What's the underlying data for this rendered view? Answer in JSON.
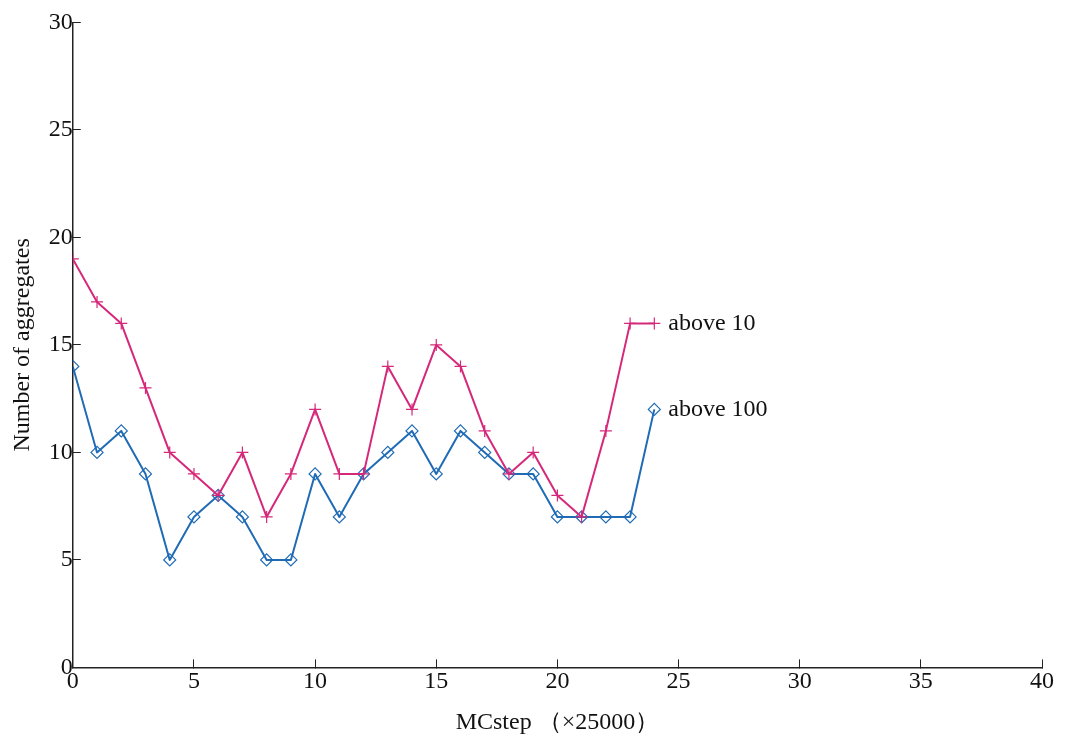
{
  "chart_data": {
    "type": "line",
    "xlabel": "MCstep （×25000）",
    "ylabel": "Number of aggregates",
    "x": [
      0,
      1,
      2,
      3,
      4,
      5,
      6,
      7,
      8,
      9,
      10,
      11,
      12,
      13,
      14,
      15,
      16,
      17,
      18,
      19,
      20,
      21,
      22,
      23,
      24
    ],
    "series": [
      {
        "name": "above 10",
        "color": "#d6287a",
        "marker": "cross",
        "values": [
          19,
          17,
          16,
          13,
          10,
          9,
          8,
          10,
          7,
          9,
          12,
          9,
          9,
          14,
          12,
          15,
          14,
          11,
          9,
          10,
          8,
          7,
          11,
          16,
          16
        ]
      },
      {
        "name": "above 100",
        "color": "#1f6bb5",
        "marker": "diamond",
        "values": [
          14,
          10,
          11,
          9,
          5,
          7,
          8,
          7,
          5,
          5,
          9,
          7,
          9,
          10,
          11,
          9,
          11,
          10,
          9,
          9,
          7,
          7,
          7,
          7,
          12
        ]
      }
    ],
    "xlim": [
      0,
      40
    ],
    "xticks": [
      0,
      5,
      10,
      15,
      20,
      25,
      30,
      35,
      40
    ],
    "ylim": [
      0,
      30
    ],
    "yticks": [
      0,
      5,
      10,
      15,
      20,
      25,
      30
    ],
    "grid": false,
    "legend": false,
    "line_style": "solid"
  }
}
